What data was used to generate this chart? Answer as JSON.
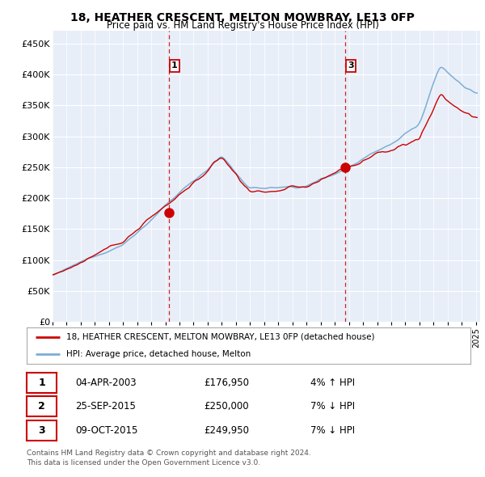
{
  "title": "18, HEATHER CRESCENT, MELTON MOWBRAY, LE13 0FP",
  "subtitle": "Price paid vs. HM Land Registry's House Price Index (HPI)",
  "ylabel_ticks": [
    "£0",
    "£50K",
    "£100K",
    "£150K",
    "£200K",
    "£250K",
    "£300K",
    "£350K",
    "£400K",
    "£450K"
  ],
  "ytick_values": [
    0,
    50000,
    100000,
    150000,
    200000,
    250000,
    300000,
    350000,
    400000,
    450000
  ],
  "ylim": [
    0,
    470000
  ],
  "xlim_start": 1995.0,
  "xlim_end": 2025.3,
  "hpi_color": "#7bafd4",
  "price_color": "#cc0000",
  "marker_color": "#cc0000",
  "transaction1_x": 2003.27,
  "transaction1_y": 176950,
  "transaction2_x": 2015.73,
  "transaction2_y": 250000,
  "transaction3_x": 2015.77,
  "transaction3_y": 249950,
  "vline1_x": 2003.27,
  "vline2_x": 2015.75,
  "vline_color": "#cc0000",
  "legend_label1": "18, HEATHER CRESCENT, MELTON MOWBRAY, LE13 0FP (detached house)",
  "legend_label2": "HPI: Average price, detached house, Melton",
  "table_rows": [
    {
      "num": "1",
      "date": "04-APR-2003",
      "price": "£176,950",
      "hpi": "4% ↑ HPI"
    },
    {
      "num": "2",
      "date": "25-SEP-2015",
      "price": "£250,000",
      "hpi": "7% ↓ HPI"
    },
    {
      "num": "3",
      "date": "09-OCT-2015",
      "price": "£249,950",
      "hpi": "7% ↓ HPI"
    }
  ],
  "footnote1": "Contains HM Land Registry data © Crown copyright and database right 2024.",
  "footnote2": "This data is licensed under the Open Government Licence v3.0.",
  "plot_bg_color": "#e8eef8"
}
